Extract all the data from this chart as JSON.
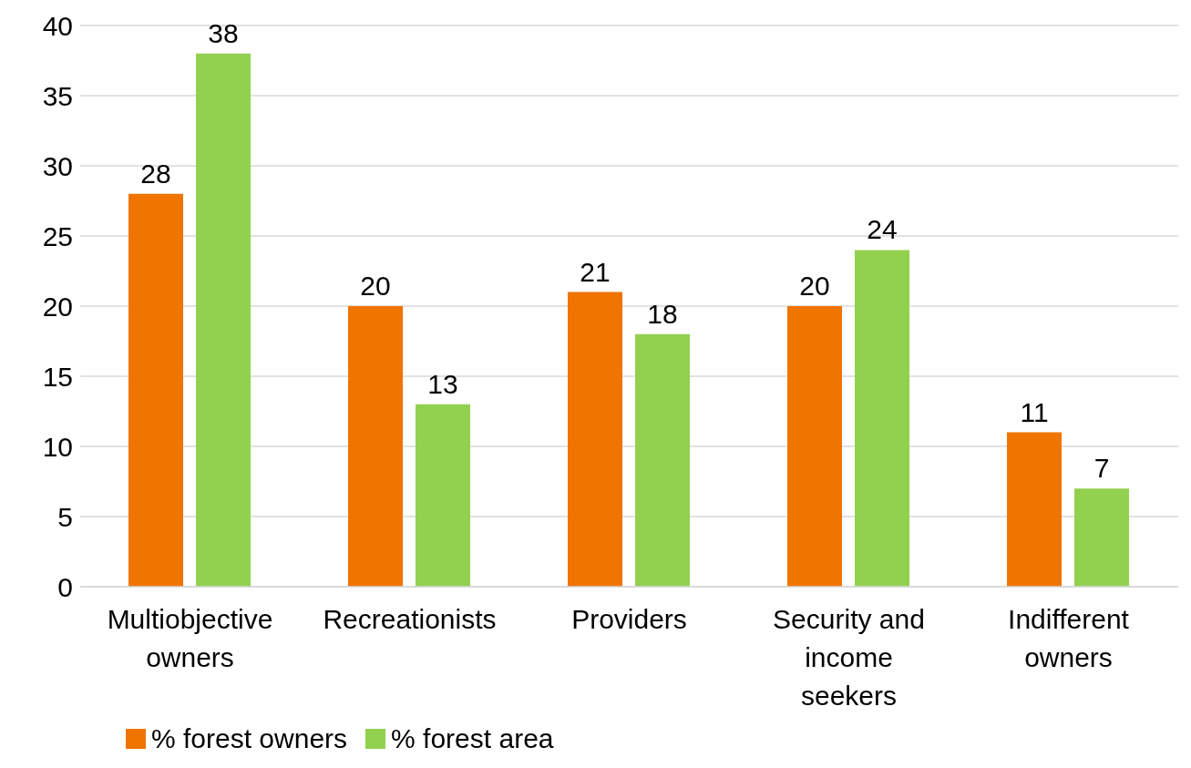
{
  "chart_data": {
    "type": "bar",
    "categories": [
      "Multiobjective owners",
      "Recreationists",
      "Providers",
      "Security and income seekers",
      "Indifferent owners"
    ],
    "series": [
      {
        "name": "% forest owners",
        "color": "#f07400",
        "values": [
          28,
          20,
          21,
          20,
          11
        ]
      },
      {
        "name": "% forest area",
        "color": "#92d050",
        "values": [
          38,
          13,
          18,
          24,
          7
        ]
      }
    ],
    "ylim": [
      0,
      40
    ],
    "yticks": [
      0,
      5,
      10,
      15,
      20,
      25,
      30,
      35,
      40
    ],
    "grid": "y",
    "legend": "bottom left",
    "data_labels": true
  }
}
